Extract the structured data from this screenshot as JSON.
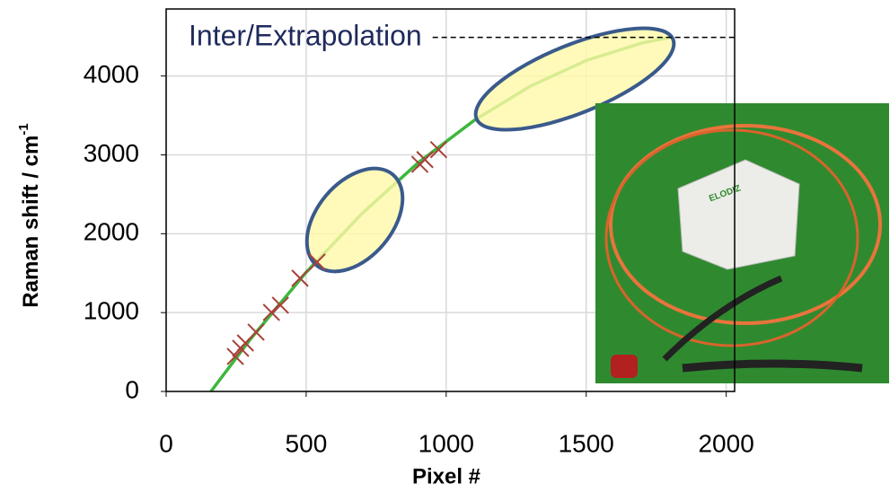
{
  "chart_data": {
    "type": "line",
    "x_label": "Pixel #",
    "y_label": "Raman shift / cm",
    "y_label_superscript": "-1",
    "annotation": "Inter/Extrapolation",
    "reference_y": 4490,
    "photo_label": "ELODIZ",
    "xlim": [
      0,
      2030
    ],
    "ylim": [
      0,
      4850
    ],
    "xticks": [
      0,
      500,
      1000,
      1500,
      2000
    ],
    "yticks": [
      0,
      1000,
      2000,
      3000,
      4000
    ],
    "grid": true,
    "series": [
      {
        "style": "line",
        "color": "#3cb83c",
        "x": [
          160,
          300,
          500,
          700,
          900,
          1100,
          1300,
          1500,
          1700,
          1800
        ],
        "values": [
          0,
          659,
          1511,
          2258,
          2900,
          3437,
          3870,
          4197,
          4419,
          4490
        ]
      },
      {
        "style": "cross",
        "color": "#a8413a",
        "x": [
          247,
          266,
          283,
          321,
          376,
          408,
          478,
          539,
          906,
          924,
          973
        ],
        "values": [
          444,
          547,
          615,
          752,
          1003,
          1094,
          1436,
          1641,
          2880,
          2940,
          3066
        ]
      }
    ]
  }
}
